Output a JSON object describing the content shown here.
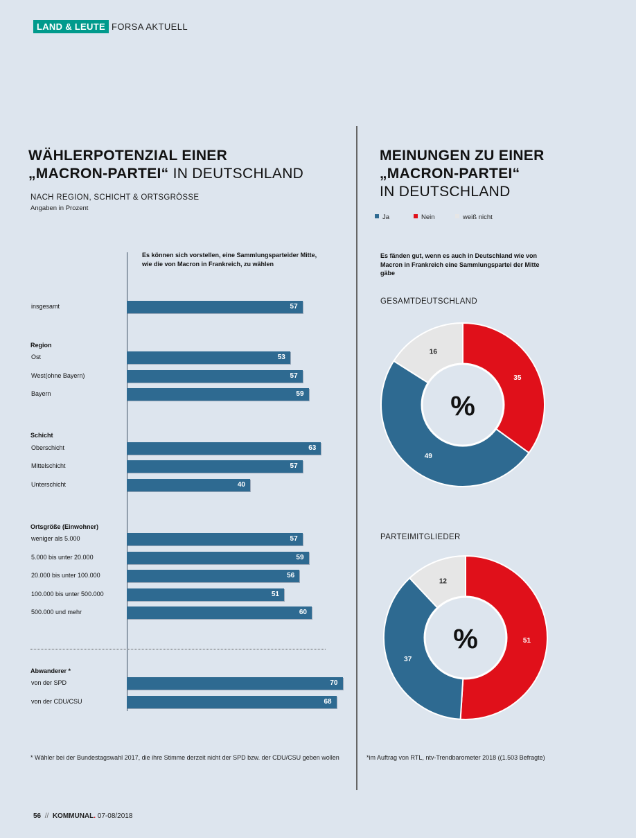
{
  "header": {
    "kicker": "LAND & LEUTE",
    "section": "FORSA AKTUELL"
  },
  "left": {
    "title_line1": "WÄHLERPOTENZIAL EINER",
    "title_line2_bold": "„MACRON-PARTEI“",
    "title_line2_light": " IN DEUTSCHLAND",
    "subtitle": "NACH REGION, SCHICHT & ORTSGRÖSSE",
    "unit": "Angaben in Prozent",
    "bar_header": "Es können sich vorstellen, eine Sammlungsparteider Mitte, wie die von Macron in Frankreich, zu wählen",
    "footnote": "* Wähler bei der Bundestagswahl 2017, die ihre Stimme derzeit nicht der SPD bzw. der CDU/CSU geben wollen"
  },
  "right": {
    "title_line1": "MEINUNGEN ZU EINER",
    "title_line2": "„MACRON-PARTEI“",
    "title_line3": "IN DEUTSCHLAND",
    "legend": [
      {
        "label": "Ja",
        "color": "#2e6a91"
      },
      {
        "label": "Nein",
        "color": "#e0101a"
      },
      {
        "label": "weiß nicht",
        "color": "#e6e6e6"
      }
    ],
    "pie_header": "Es fänden gut, wenn es auch in Deutschland wie von Macron in Frankreich eine Sammlungspartei der Mitte gäbe",
    "center_symbol": "%",
    "footnote": "*im Auftrag von RTL, ntv-Trendbarometer 2018 ((1.503 Befragte)"
  },
  "page_footer": {
    "page_number": "56",
    "separator": "//",
    "brand": "KOMMUNAL",
    "issue": " 07-08/2018"
  },
  "chart_data": [
    {
      "type": "bar",
      "orientation": "horizontal",
      "color": "#2e6a91",
      "xlim": [
        0,
        100
      ],
      "groups": [
        {
          "name": "",
          "categories": [
            "insgesamt"
          ],
          "values": [
            57
          ]
        },
        {
          "name": "Region",
          "categories": [
            "Ost",
            "West(ohne Bayern)",
            "Bayern"
          ],
          "values": [
            53,
            57,
            59
          ]
        },
        {
          "name": "Schicht",
          "categories": [
            "Oberschicht",
            "Mittelschicht",
            "Unterschicht"
          ],
          "values": [
            63,
            57,
            40
          ]
        },
        {
          "name": "Ortsgröße (Einwohner)",
          "categories": [
            "weniger als 5.000",
            "5.000 bis unter 20.000",
            "20.000 bis unter 100.000",
            "100.000 bis unter 500.000",
            "500.000 und mehr"
          ],
          "values": [
            57,
            59,
            56,
            51,
            60
          ]
        },
        {
          "name": "Abwanderer *",
          "categories": [
            "von der SPD",
            "von der CDU/CSU"
          ],
          "values": [
            70,
            68
          ]
        }
      ]
    },
    {
      "type": "pie",
      "title": "GESAMTDEUTSCHLAND",
      "categories": [
        "Ja",
        "Nein",
        "weiß nicht"
      ],
      "values": [
        49,
        35,
        16
      ],
      "colors": [
        "#2e6a91",
        "#e0101a",
        "#e6e6e6"
      ]
    },
    {
      "type": "pie",
      "title": "PARTEIMITGLIEDER",
      "categories": [
        "Ja",
        "Nein",
        "weiß nicht"
      ],
      "values": [
        37,
        51,
        12
      ],
      "colors": [
        "#2e6a91",
        "#e0101a",
        "#e6e6e6"
      ]
    }
  ]
}
